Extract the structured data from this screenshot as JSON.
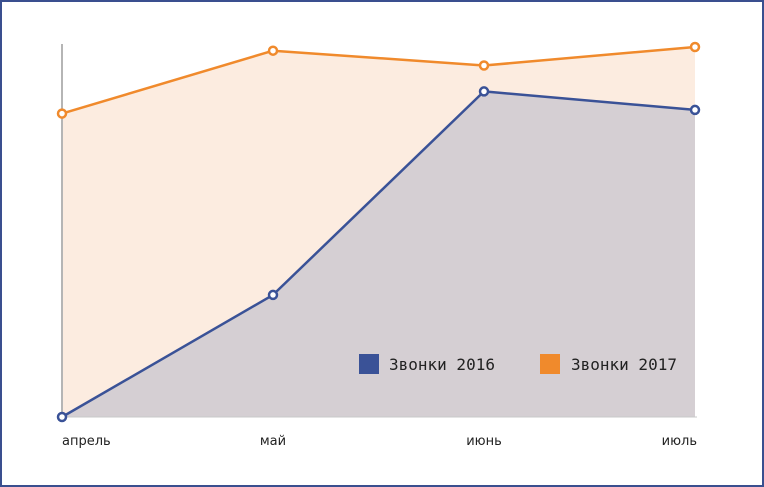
{
  "chart_data": {
    "type": "area",
    "categories": [
      "апрель",
      "май",
      "июнь",
      "июль"
    ],
    "series": [
      {
        "name": "Звонки 2016",
        "values": [
          0,
          33,
          88,
          83
        ],
        "color": "#3a5297",
        "fill": "#d5cfd3"
      },
      {
        "name": "Звонки 2017",
        "values": [
          82,
          99,
          95,
          100
        ],
        "color": "#f08a2c",
        "fill": "#fcece0"
      }
    ],
    "ylim": [
      0,
      100
    ],
    "grid": false,
    "legend_position": "bottom-right",
    "title": "",
    "xlabel": "",
    "ylabel": ""
  }
}
